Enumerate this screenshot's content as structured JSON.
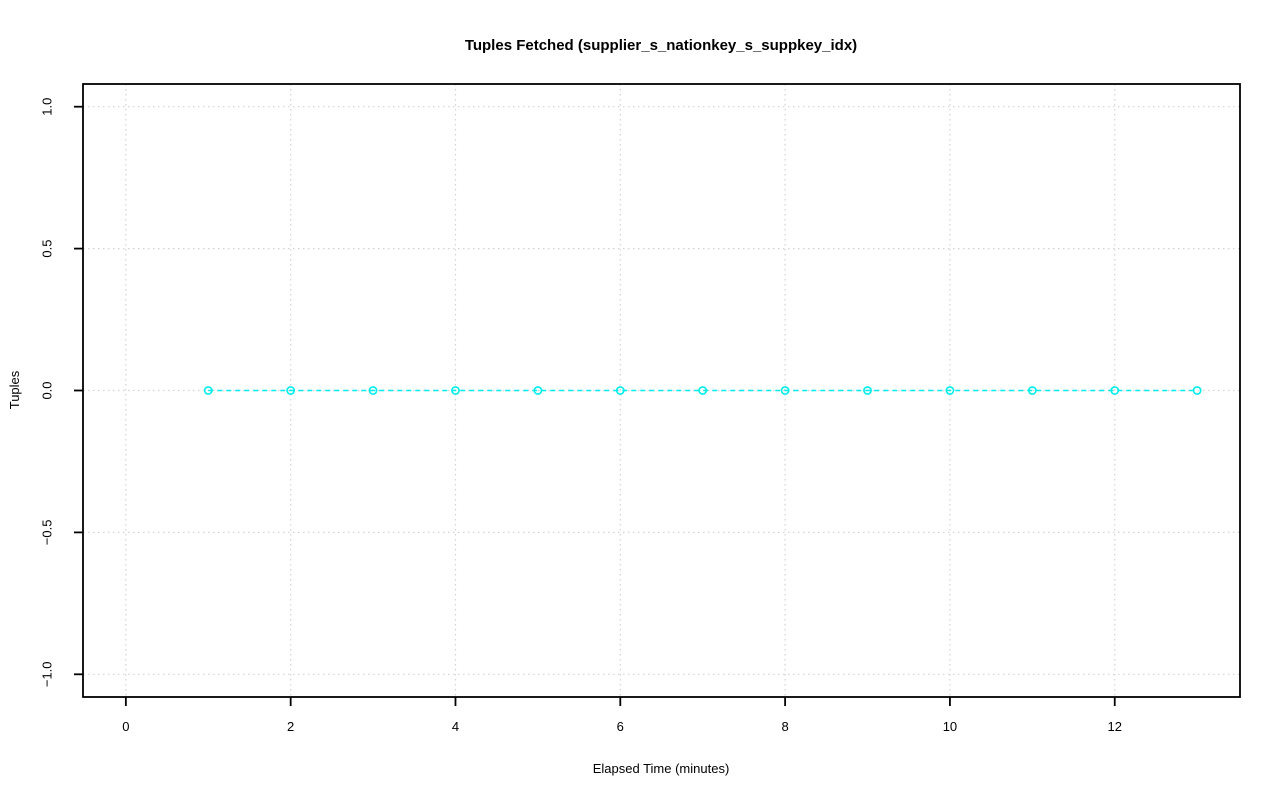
{
  "figure": {
    "background": "#FFFFFF",
    "frame_color": "#000000"
  },
  "chart_data": {
    "type": "line",
    "title": "Tuples Fetched (supplier_s_nationkey_s_suppkey_idx)",
    "xlabel": "Elapsed Time (minutes)",
    "ylabel": "Tuples",
    "x": [
      1,
      2,
      3,
      4,
      5,
      6,
      7,
      8,
      9,
      10,
      11,
      12,
      13
    ],
    "series": [
      {
        "name": "tuples-fetched",
        "values": [
          0,
          0,
          0,
          0,
          0,
          0,
          0,
          0,
          0,
          0,
          0,
          0,
          0
        ],
        "color": "#00EDED",
        "line_style": "dashed",
        "marker": "open-circle"
      }
    ],
    "xlim": [
      -0.52,
      13.52
    ],
    "ylim": [
      -1.08,
      1.08
    ],
    "xticks": [
      {
        "value": 0,
        "label": "0"
      },
      {
        "value": 2,
        "label": "2"
      },
      {
        "value": 4,
        "label": "4"
      },
      {
        "value": 6,
        "label": "6"
      },
      {
        "value": 8,
        "label": "8"
      },
      {
        "value": 10,
        "label": "10"
      },
      {
        "value": 12,
        "label": "12"
      }
    ],
    "yticks": [
      {
        "value": 1.0,
        "label": "1.0"
      },
      {
        "value": 0.5,
        "label": "0.5"
      },
      {
        "value": 0.0,
        "label": "0.0"
      },
      {
        "value": -0.5,
        "label": "−0.5"
      },
      {
        "value": -1.0,
        "label": "−1.0"
      }
    ],
    "grid": {
      "visible": true,
      "style": "dotted",
      "color": "#D3D3D3"
    },
    "legend": "none"
  }
}
